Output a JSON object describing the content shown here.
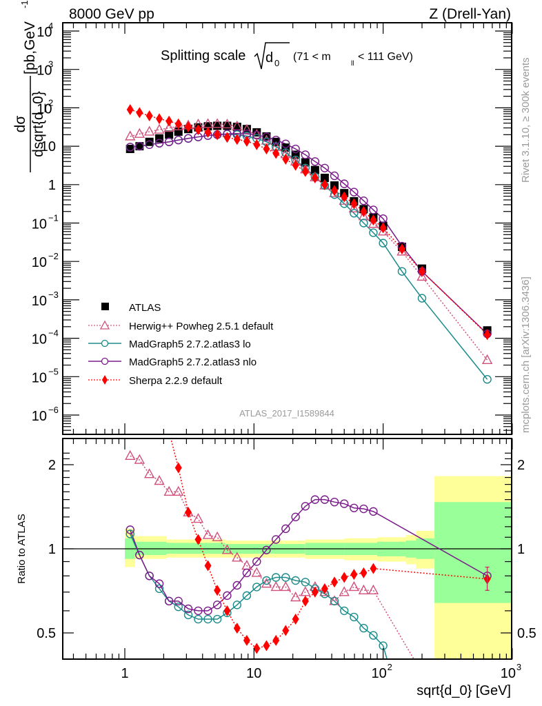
{
  "header": {
    "left_label": "8000 GeV pp",
    "right_label": "Z (Drell-Yan)"
  },
  "side_labels": {
    "rivet": "Rivet 3.1.10, ≥ 300k events",
    "mcplots": "mcplots.cern.ch [arXiv:1306.3436]"
  },
  "watermark": "ATLAS_2017_I1589844",
  "chart_data": [
    {
      "type": "scatter",
      "panel": "main",
      "title": "Splitting scale √d₀ (71 < m_ll < 111 GeV)",
      "title_parts": {
        "prefix": "Splitting scale",
        "var": "d",
        "sub": "0",
        "range_open": "(71 < m",
        "range_sub": "ll",
        "range_close": " < 111 GeV)"
      },
      "xlabel": "sqrt{d_0} [GeV]",
      "ylabel": "dσ / dsqrt{d_0} [pb,GeV⁻¹]",
      "ylabel_parts": {
        "num": "dσ",
        "den": "dsqrt{d_0}",
        "unit": "[pb,GeV",
        "unit_sup": "-1",
        "unit_close": "]"
      },
      "xscale": "log",
      "yscale": "log",
      "xlim": [
        0.35,
        1000
      ],
      "ylim": [
        2e-07,
        15000
      ],
      "ytick_labels": [
        "10^4",
        "10^3",
        "10^2",
        "10",
        "1",
        "10^-1",
        "10^-2",
        "10^-3",
        "10^-4",
        "10^-5",
        "10^-6"
      ],
      "legend_position": "bottom-left",
      "x": [
        1.1,
        1.3,
        1.55,
        1.85,
        2.2,
        2.6,
        3.1,
        3.7,
        4.4,
        5.2,
        6.2,
        7.4,
        8.8,
        10.5,
        12.5,
        14.8,
        17.6,
        21,
        25,
        29.7,
        35.3,
        42,
        50,
        59.5,
        70.7,
        84,
        100,
        140,
        200,
        640
      ],
      "series": [
        {
          "name": "ATLAS",
          "marker": "square",
          "color": "#000000",
          "line": "none",
          "values": [
            8.5,
            10,
            13,
            16,
            20,
            24,
            28,
            31,
            33,
            34,
            34,
            32,
            28,
            23,
            18,
            13,
            9.2,
            6.0,
            3.8,
            2.4,
            1.5,
            0.95,
            0.6,
            0.37,
            0.23,
            0.14,
            0.085,
            0.024,
            0.0065,
            0.00016
          ]
        },
        {
          "name": "Herwig++ Powheg 2.5.1 default",
          "marker": "open-triangle",
          "color": "#d0507a",
          "line": "dotted",
          "values": [
            18,
            21,
            24,
            27,
            30,
            33,
            35,
            37,
            38,
            38,
            37,
            33,
            27,
            20,
            14,
            9.5,
            6.2,
            4.0,
            2.5,
            1.55,
            0.95,
            0.6,
            0.38,
            0.24,
            0.15,
            0.095,
            0.06,
            0.018,
            0.004,
            2.7e-05
          ]
        },
        {
          "name": "MadGraph5 2.7.2.atlas3 lo",
          "marker": "open-circle",
          "color": "#1a8a8a",
          "line": "solid",
          "values": [
            9.5,
            10,
            11,
            12,
            13,
            14.5,
            16,
            17.5,
            19,
            20,
            20.5,
            20,
            18.5,
            16,
            13,
            9.8,
            6.8,
            4.4,
            2.7,
            1.6,
            0.95,
            0.55,
            0.32,
            0.18,
            0.1,
            0.056,
            0.03,
            0.0055,
            0.0011,
            8.5e-06
          ]
        },
        {
          "name": "MadGraph5 2.7.2.atlas3 nlo",
          "marker": "open-circle",
          "color": "#7a1a8a",
          "line": "solid",
          "values": [
            9.5,
            10,
            11,
            12,
            13,
            14.5,
            16,
            17.5,
            19,
            20,
            21,
            21.5,
            21,
            19.5,
            17.5,
            14.5,
            11.5,
            8.5,
            6,
            4,
            2.7,
            1.7,
            1.05,
            0.64,
            0.38,
            0.22,
            0.13,
            0.025,
            0.0055,
            0.00013
          ]
        },
        {
          "name": "Sherpa 2.2.9 default",
          "marker": "diamond",
          "color": "#ff0000",
          "line": "dotted",
          "values": [
            90,
            75,
            62,
            52,
            45,
            38,
            32,
            27,
            23,
            20,
            17,
            15,
            13.5,
            11,
            8.5,
            6.5,
            4.6,
            3.2,
            2.2,
            1.5,
            1.0,
            0.7,
            0.48,
            0.32,
            0.2,
            0.12,
            0.075,
            0.021,
            0.0055,
            0.000125
          ]
        }
      ]
    },
    {
      "type": "scatter",
      "panel": "ratio",
      "xlabel": "sqrt{d_0} [GeV]",
      "ylabel": "Ratio to ATLAS",
      "xscale": "log",
      "yscale": "log",
      "xlim": [
        0.35,
        1000
      ],
      "ylim": [
        0.42,
        2.3
      ],
      "xtick_labels": [
        "1",
        "10",
        "10^2",
        "10^3"
      ],
      "ytick_labels_left": [
        "2",
        "1",
        "0.5"
      ],
      "ytick_labels_right": [
        "2",
        "1",
        "0.5"
      ],
      "reference_line": 1,
      "bands": {
        "edges": [
          1.0,
          1.2,
          2.1,
          6,
          12,
          25,
          50,
          90,
          150,
          180,
          250,
          1000
        ],
        "yellow_low": [
          0.86,
          0.92,
          0.93,
          0.93,
          0.93,
          0.92,
          0.91,
          0.9,
          0.88,
          0.85,
          0.38
        ],
        "yellow_high": [
          1.18,
          1.11,
          1.08,
          1.07,
          1.07,
          1.08,
          1.09,
          1.1,
          1.12,
          1.16,
          1.82
        ],
        "green_low": [
          0.92,
          0.95,
          0.96,
          0.96,
          0.96,
          0.95,
          0.95,
          0.94,
          0.93,
          0.92,
          0.64
        ],
        "green_high": [
          1.09,
          1.06,
          1.05,
          1.04,
          1.04,
          1.05,
          1.05,
          1.06,
          1.07,
          1.09,
          1.47
        ],
        "yellow_color": "#ffff99",
        "green_color": "#99ff99"
      },
      "x": [
        1.1,
        1.3,
        1.55,
        1.85,
        2.2,
        2.6,
        3.1,
        3.7,
        4.4,
        5.2,
        6.2,
        7.4,
        8.8,
        10.5,
        12.5,
        14.8,
        17.6,
        21,
        25,
        29.7,
        35.3,
        42,
        50,
        59.5,
        70.7,
        84,
        100,
        140,
        200,
        640
      ],
      "series": [
        {
          "name": "Herwig++ Powheg 2.5.1 default",
          "marker": "open-triangle",
          "color": "#d0507a",
          "line": "dotted",
          "values": [
            2.15,
            2.08,
            1.85,
            1.75,
            1.6,
            1.6,
            1.35,
            1.28,
            1.12,
            1.1,
            0.99,
            0.93,
            0.87,
            0.82,
            0.75,
            0.73,
            0.73,
            0.67,
            0.7,
            0.73,
            0.7,
            0.65,
            0.7,
            0.73,
            0.71,
            0.71,
            null,
            null,
            null,
            null
          ]
        },
        {
          "name": "MadGraph5 2.7.2.atlas3 lo",
          "marker": "open-circle",
          "color": "#1a8a8a",
          "line": "solid",
          "values": [
            1.13,
            0.95,
            0.8,
            0.72,
            0.65,
            0.62,
            0.58,
            0.56,
            0.56,
            0.56,
            0.59,
            0.63,
            0.68,
            0.73,
            0.77,
            0.79,
            0.79,
            0.77,
            0.76,
            0.72,
            0.69,
            0.65,
            0.6,
            0.57,
            0.52,
            0.49,
            0.45,
            null,
            null,
            null
          ]
        },
        {
          "name": "MadGraph5 2.7.2.atlas3 nlo",
          "marker": "open-circle",
          "color": "#7a1a8a",
          "line": "solid",
          "values": [
            1.17,
            0.95,
            0.8,
            0.75,
            0.65,
            0.65,
            0.61,
            0.6,
            0.6,
            0.63,
            0.68,
            0.74,
            0.82,
            0.9,
            0.99,
            1.08,
            1.18,
            1.3,
            1.42,
            1.5,
            1.5,
            1.47,
            1.45,
            1.4,
            1.39,
            1.36,
            null,
            null,
            null,
            0.8
          ]
        },
        {
          "name": "Sherpa 2.2.9 default",
          "marker": "diamond",
          "color": "#ff0000",
          "line": "dotted",
          "values": [
            null,
            null,
            null,
            null,
            null,
            1.95,
            1.35,
            1.08,
            0.87,
            0.71,
            0.6,
            0.52,
            0.47,
            0.44,
            0.45,
            0.47,
            0.51,
            0.56,
            0.65,
            0.7,
            0.72,
            0.76,
            0.79,
            0.81,
            0.82,
            0.85,
            null,
            null,
            null,
            0.78
          ]
        }
      ]
    }
  ]
}
